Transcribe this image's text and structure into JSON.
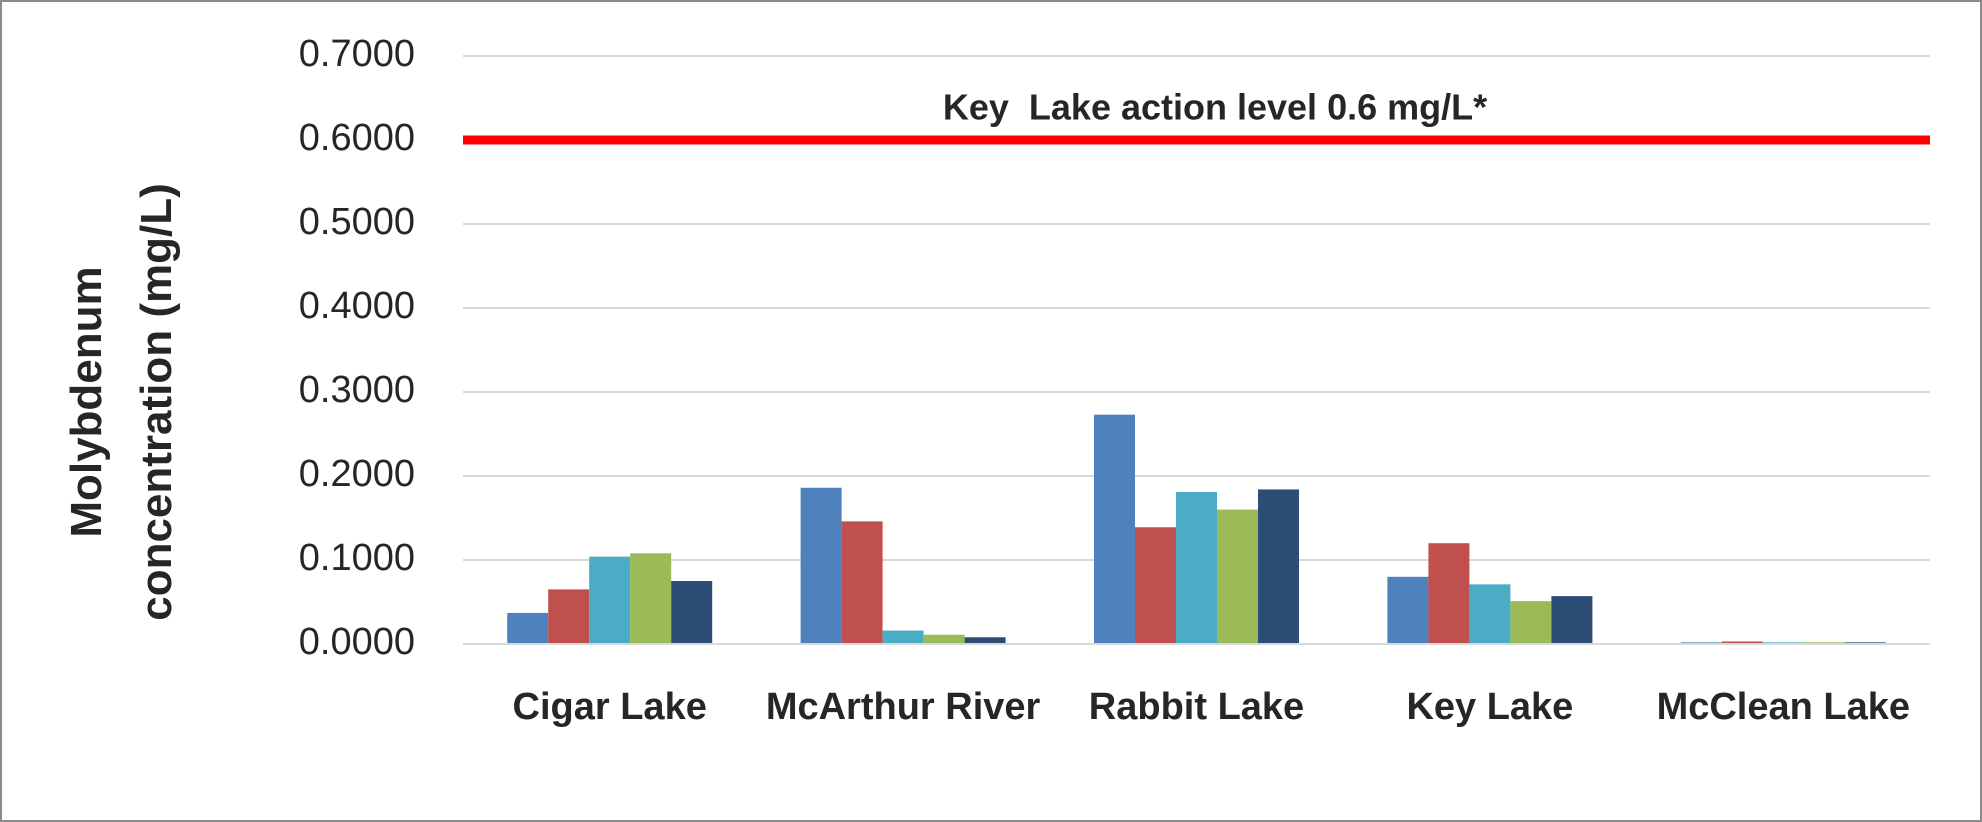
{
  "chart_data": {
    "type": "bar",
    "y_label": "Molybdenum concentration (mg/L)",
    "categories": [
      "Cigar Lake",
      "McArthur River",
      "Rabbit Lake",
      "Key Lake",
      "McClean Lake"
    ],
    "series": [
      {
        "color": "#4f81bd",
        "values": [
          0.037,
          0.186,
          0.273,
          0.08,
          0.002
        ]
      },
      {
        "color": "#c0504d",
        "values": [
          0.065,
          0.146,
          0.139,
          0.12,
          0.003
        ]
      },
      {
        "color": "#4bacc6",
        "values": [
          0.104,
          0.016,
          0.181,
          0.071,
          0.002
        ]
      },
      {
        "color": "#9bbb59",
        "values": [
          0.108,
          0.011,
          0.16,
          0.051,
          0.002
        ]
      },
      {
        "color": "#2c4d75",
        "values": [
          0.075,
          0.008,
          0.184,
          0.057,
          0.002
        ]
      }
    ],
    "reference_line": {
      "value": 0.6,
      "label": "Key  Lake action level 0.6 mg/L*",
      "color": "#ff0000"
    },
    "ylim": [
      0,
      0.7
    ],
    "yticks": [
      {
        "value": 0,
        "label": "0.0000"
      },
      {
        "value": 0.1,
        "label": "0.1000"
      },
      {
        "value": 0.2,
        "label": "0.2000"
      },
      {
        "value": 0.3,
        "label": "0.3000"
      },
      {
        "value": 0.4,
        "label": "0.4000"
      },
      {
        "value": 0.5,
        "label": "0.5000"
      },
      {
        "value": 0.6,
        "label": "0.6000"
      },
      {
        "value": 0.7,
        "label": "0.7000"
      }
    ],
    "grid": true
  }
}
